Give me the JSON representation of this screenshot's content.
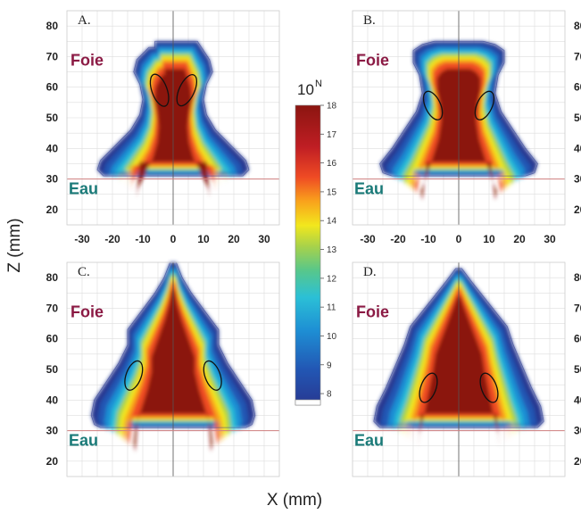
{
  "chart_data": {
    "type": "heatmap",
    "xlabel": "X (mm)",
    "ylabel": "Z (mm)",
    "x_ticks": [
      "-30",
      "-20",
      "-10",
      "0",
      "10",
      "20",
      "30"
    ],
    "z_ticks": [
      "20",
      "30",
      "40",
      "50",
      "60",
      "70",
      "80"
    ],
    "xlim": [
      -35,
      35
    ],
    "zlim": [
      15,
      85
    ],
    "grid": true,
    "interface_z": 30,
    "colorbar": {
      "title_base": "10",
      "title_exp": "N",
      "ticks": [
        "18",
        "17",
        "16",
        "15",
        "14",
        "13",
        "12",
        "11",
        "10",
        "9",
        "8"
      ],
      "min": 7.6,
      "max": 18
    },
    "panels": [
      {
        "label": "A.",
        "upper_region": "Foie",
        "lower_region": "Eau",
        "ellipses": [
          {
            "x": -4.5,
            "z": 59,
            "rx": 2.5,
            "rz": 5.5,
            "rot": -20
          },
          {
            "x": 4.5,
            "z": 59,
            "rx": 2.5,
            "rz": 5.5,
            "rot": 25
          }
        ]
      },
      {
        "label": "B.",
        "upper_region": "Foie",
        "lower_region": "Eau",
        "ellipses": [
          {
            "x": -8.5,
            "z": 54,
            "rx": 2.5,
            "rz": 5,
            "rot": -25
          },
          {
            "x": 8.5,
            "z": 54,
            "rx": 2.5,
            "rz": 5,
            "rot": 25
          }
        ]
      },
      {
        "label": "C.",
        "upper_region": "Foie",
        "lower_region": "Eau",
        "ellipses": [
          {
            "x": -13,
            "z": 48,
            "rx": 2.5,
            "rz": 5,
            "rot": 20
          },
          {
            "x": 13,
            "z": 48,
            "rx": 2.5,
            "rz": 5,
            "rot": -20
          }
        ]
      },
      {
        "label": "D.",
        "upper_region": "Foie",
        "lower_region": "Eau",
        "ellipses": [
          {
            "x": -10,
            "z": 44,
            "rx": 2.5,
            "rz": 5,
            "rot": 20
          },
          {
            "x": 10,
            "z": 44,
            "rx": 2.5,
            "rz": 5,
            "rot": -20
          }
        ]
      }
    ]
  },
  "colors": {
    "tissue_label": "#8b1a44",
    "water_label": "#1a7a78",
    "interface_line": "#d08080",
    "grid": "#dddddd",
    "colormap": [
      "#283891",
      "#2257b4",
      "#1e8fd4",
      "#2bc0d6",
      "#58c78a",
      "#a8d24a",
      "#f2e71d",
      "#f9a21c",
      "#ef4b24",
      "#c01e24",
      "#8b1510"
    ]
  }
}
